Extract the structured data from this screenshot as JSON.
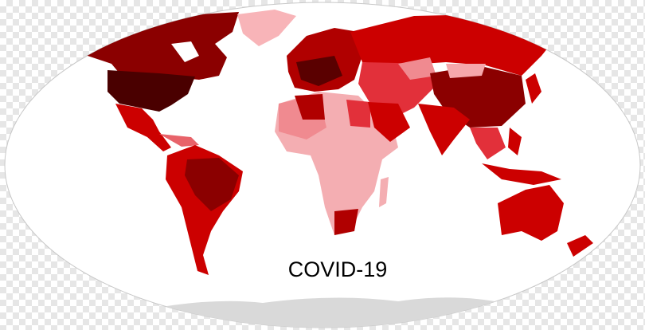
{
  "map": {
    "title": "COVID-19"
  }
}
